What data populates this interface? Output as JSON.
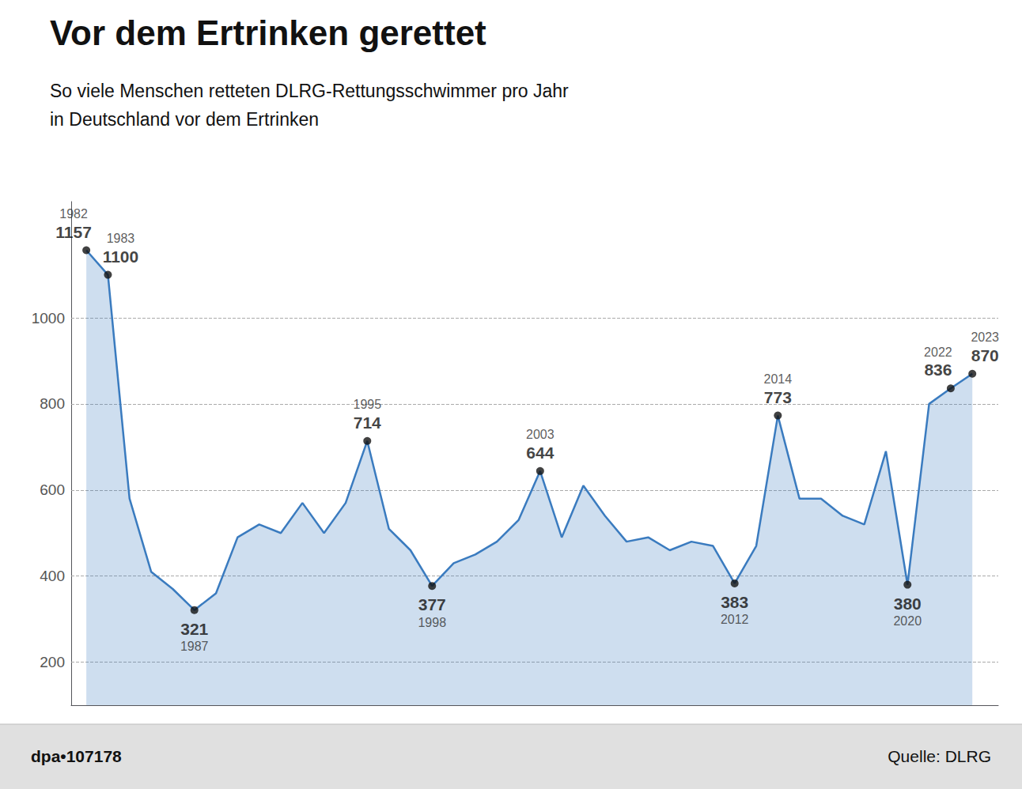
{
  "chart_data": {
    "type": "area",
    "title": "Vor dem Ertrinken gerettet",
    "subtitle": [
      "So viele Menschen retteten DLRG-Rettungsschwimmer pro Jahr",
      "in Deutschland vor dem Ertrinken"
    ],
    "footer": [
      "dpa•107178",
      "Quelle: DLRG"
    ],
    "x": [
      1982,
      1983,
      1984,
      1985,
      1986,
      1987,
      1988,
      1989,
      1990,
      1991,
      1992,
      1993,
      1994,
      1995,
      1996,
      1997,
      1998,
      1999,
      2000,
      2001,
      2002,
      2003,
      2004,
      2005,
      2006,
      2007,
      2008,
      2009,
      2010,
      2011,
      2012,
      2013,
      2014,
      2015,
      2016,
      2017,
      2018,
      2019,
      2020,
      2021,
      2022,
      2023
    ],
    "values": [
      1157,
      1100,
      580,
      410,
      370,
      321,
      360,
      490,
      520,
      500,
      570,
      500,
      570,
      714,
      510,
      460,
      377,
      430,
      450,
      480,
      530,
      644,
      490,
      610,
      540,
      480,
      490,
      460,
      480,
      470,
      383,
      470,
      773,
      580,
      580,
      540,
      520,
      690,
      380,
      800,
      836,
      870
    ],
    "color": "#3a7bbf",
    "annotations": [
      {
        "x": 1982,
        "y": 1157,
        "label": "1982",
        "value_label": "1157",
        "position": "above"
      },
      {
        "x": 1983,
        "y": 1100,
        "label": "1983",
        "value_label": "1100",
        "position": "above"
      },
      {
        "x": 1987,
        "y": 321,
        "label": "1987",
        "value_label": "321",
        "position": "below"
      },
      {
        "x": 1995,
        "y": 714,
        "label": "1995",
        "value_label": "714",
        "position": "above"
      },
      {
        "x": 1998,
        "y": 377,
        "label": "1998",
        "value_label": "377",
        "position": "below"
      },
      {
        "x": 2003,
        "y": 644,
        "label": "2003",
        "value_label": "644",
        "position": "above"
      },
      {
        "x": 2012,
        "y": 383,
        "label": "2012",
        "value_label": "383",
        "position": "below"
      },
      {
        "x": 2014,
        "y": 773,
        "label": "2014",
        "value_label": "773",
        "position": "above"
      },
      {
        "x": 2020,
        "y": 380,
        "label": "2020",
        "value_label": "380",
        "position": "below"
      },
      {
        "x": 2022,
        "y": 836,
        "label": "2022",
        "value_label": "836",
        "position": "above"
      },
      {
        "x": 2023,
        "y": 870,
        "label": "2023",
        "value_label": "870",
        "position": "above"
      }
    ],
    "marker": "circle",
    "xlim": [
      1981.3,
      2024.2
    ],
    "ylim": [
      100,
      1270
    ],
    "yticks": [
      200,
      400,
      600,
      800,
      1000
    ],
    "grid": true,
    "tick_labels": "y"
  }
}
